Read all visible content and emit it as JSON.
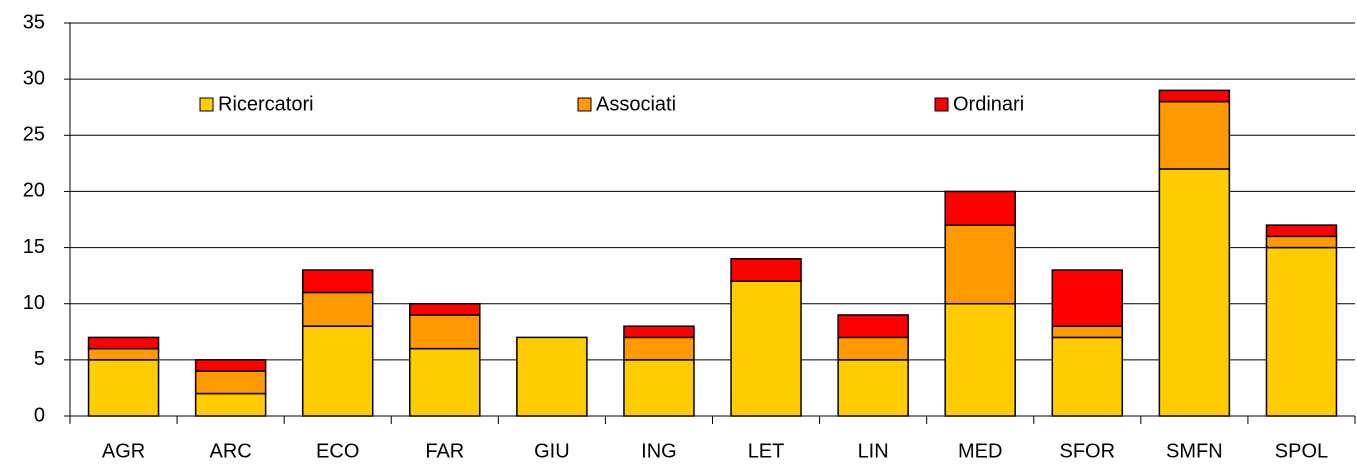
{
  "chart_data": {
    "type": "stacked_bar",
    "categories": [
      "AGR",
      "ARC",
      "ECO",
      "FAR",
      "GIU",
      "ING",
      "LET",
      "LIN",
      "MED",
      "SFOR",
      "SMFN",
      "SPOL"
    ],
    "series": [
      {
        "name": "Ricercatori",
        "color": "#ffcc00",
        "values": [
          5,
          2,
          8,
          6,
          7,
          5,
          12,
          5,
          10,
          7,
          22,
          15
        ]
      },
      {
        "name": "Associati",
        "color": "#ff9900",
        "values": [
          1,
          2,
          3,
          3,
          0,
          2,
          0,
          2,
          7,
          1,
          6,
          1
        ]
      },
      {
        "name": "Ordinari",
        "color": "#ff0000",
        "values": [
          1,
          1,
          2,
          1,
          0,
          1,
          2,
          2,
          3,
          5,
          1,
          1
        ]
      }
    ],
    "ylim": [
      0,
      35
    ],
    "yticks": [
      0,
      5,
      10,
      15,
      20,
      25,
      30,
      35
    ],
    "grid": true,
    "legend": "top"
  }
}
